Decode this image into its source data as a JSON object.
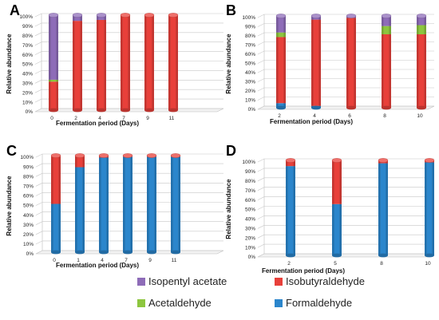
{
  "colors": {
    "Isopentyl acetate": "#8E6CB8",
    "Isobutyraldehyde": "#E8403A",
    "Acetaldehyde": "#8DC63F",
    "Formaldehyde": "#2B86CC"
  },
  "legend": {
    "items": [
      {
        "label": "Isopentyl acetate"
      },
      {
        "label": "Isobutyraldehyde"
      },
      {
        "label": "Acetaldehyde"
      },
      {
        "label": "Formaldehyde"
      }
    ]
  },
  "chart_data": [
    {
      "panel": "A",
      "type": "bar",
      "stacked": true,
      "xlabel": "Fermentation period (Days)",
      "ylabel": "Relative abundance",
      "categories": [
        "0",
        "2",
        "4",
        "7",
        "9",
        "11"
      ],
      "yticks": [
        "0%",
        "10%",
        "20%",
        "30%",
        "40%",
        "50%",
        "60%",
        "70%",
        "80%",
        "90%",
        "100%"
      ],
      "ylim": [
        0,
        100
      ],
      "grid": true,
      "series": [
        {
          "name": "Formaldehyde",
          "values": [
            0,
            0,
            0,
            0,
            0,
            0
          ]
        },
        {
          "name": "Isobutyraldehyde",
          "values": [
            30,
            94,
            95,
            100,
            100,
            100
          ]
        },
        {
          "name": "Acetaldehyde",
          "values": [
            2,
            0,
            0,
            0,
            0,
            0
          ]
        },
        {
          "name": "Isopentyl acetate",
          "values": [
            68,
            6,
            5,
            0,
            0,
            0
          ]
        }
      ]
    },
    {
      "panel": "B",
      "type": "bar",
      "stacked": true,
      "xlabel": "Fermentation period (Days)",
      "ylabel": "Relative abundance",
      "categories": [
        "2",
        "4",
        "6",
        "8",
        "10"
      ],
      "yticks": [
        "0%",
        "10%",
        "20%",
        "30%",
        "40%",
        "50%",
        "60%",
        "70%",
        "80%",
        "90%",
        "100%"
      ],
      "ylim": [
        0,
        100
      ],
      "grid": true,
      "series": [
        {
          "name": "Formaldehyde",
          "values": [
            5,
            2,
            0,
            0,
            0
          ]
        },
        {
          "name": "Isobutyraldehyde",
          "values": [
            72,
            94,
            98,
            80,
            80
          ]
        },
        {
          "name": "Acetaldehyde",
          "values": [
            5,
            0,
            0,
            9,
            10
          ]
        },
        {
          "name": "Isopentyl acetate",
          "values": [
            18,
            4,
            2,
            11,
            10
          ]
        }
      ]
    },
    {
      "panel": "C",
      "type": "bar",
      "stacked": true,
      "xlabel": "Fermentation period (Days)",
      "ylabel": "Relative abundance",
      "categories": [
        "0",
        "1",
        "4",
        "7",
        "9",
        "11"
      ],
      "yticks": [
        "0%",
        "10%",
        "20%",
        "30%",
        "40%",
        "50%",
        "60%",
        "70%",
        "80%",
        "90%",
        "100%"
      ],
      "ylim": [
        0,
        100
      ],
      "grid": true,
      "series": [
        {
          "name": "Formaldehyde",
          "values": [
            50,
            88,
            98,
            99,
            99,
            99
          ]
        },
        {
          "name": "Isobutyraldehyde",
          "values": [
            50,
            12,
            2,
            1,
            1,
            1
          ]
        },
        {
          "name": "Acetaldehyde",
          "values": [
            0,
            0,
            0,
            0,
            0,
            0
          ]
        },
        {
          "name": "Isopentyl acetate",
          "values": [
            0,
            0,
            0,
            0,
            0,
            0
          ]
        }
      ]
    },
    {
      "panel": "D",
      "type": "bar",
      "stacked": true,
      "xlabel": "Fermentation period (Days)",
      "ylabel": "Relative abundance",
      "categories": [
        "2",
        "5",
        "8",
        "10"
      ],
      "yticks": [
        "0%",
        "10%",
        "20%",
        "30%",
        "40%",
        "50%",
        "60%",
        "70%",
        "80%",
        "90%",
        "100%"
      ],
      "ylim": [
        0,
        100
      ],
      "grid": true,
      "series": [
        {
          "name": "Formaldehyde",
          "values": [
            94,
            54,
            97,
            98
          ]
        },
        {
          "name": "Isobutyraldehyde",
          "values": [
            6,
            46,
            3,
            2
          ]
        },
        {
          "name": "Acetaldehyde",
          "values": [
            0,
            0,
            0,
            0
          ]
        },
        {
          "name": "Isopentyl acetate",
          "values": [
            0,
            0,
            0,
            0
          ]
        }
      ]
    }
  ]
}
